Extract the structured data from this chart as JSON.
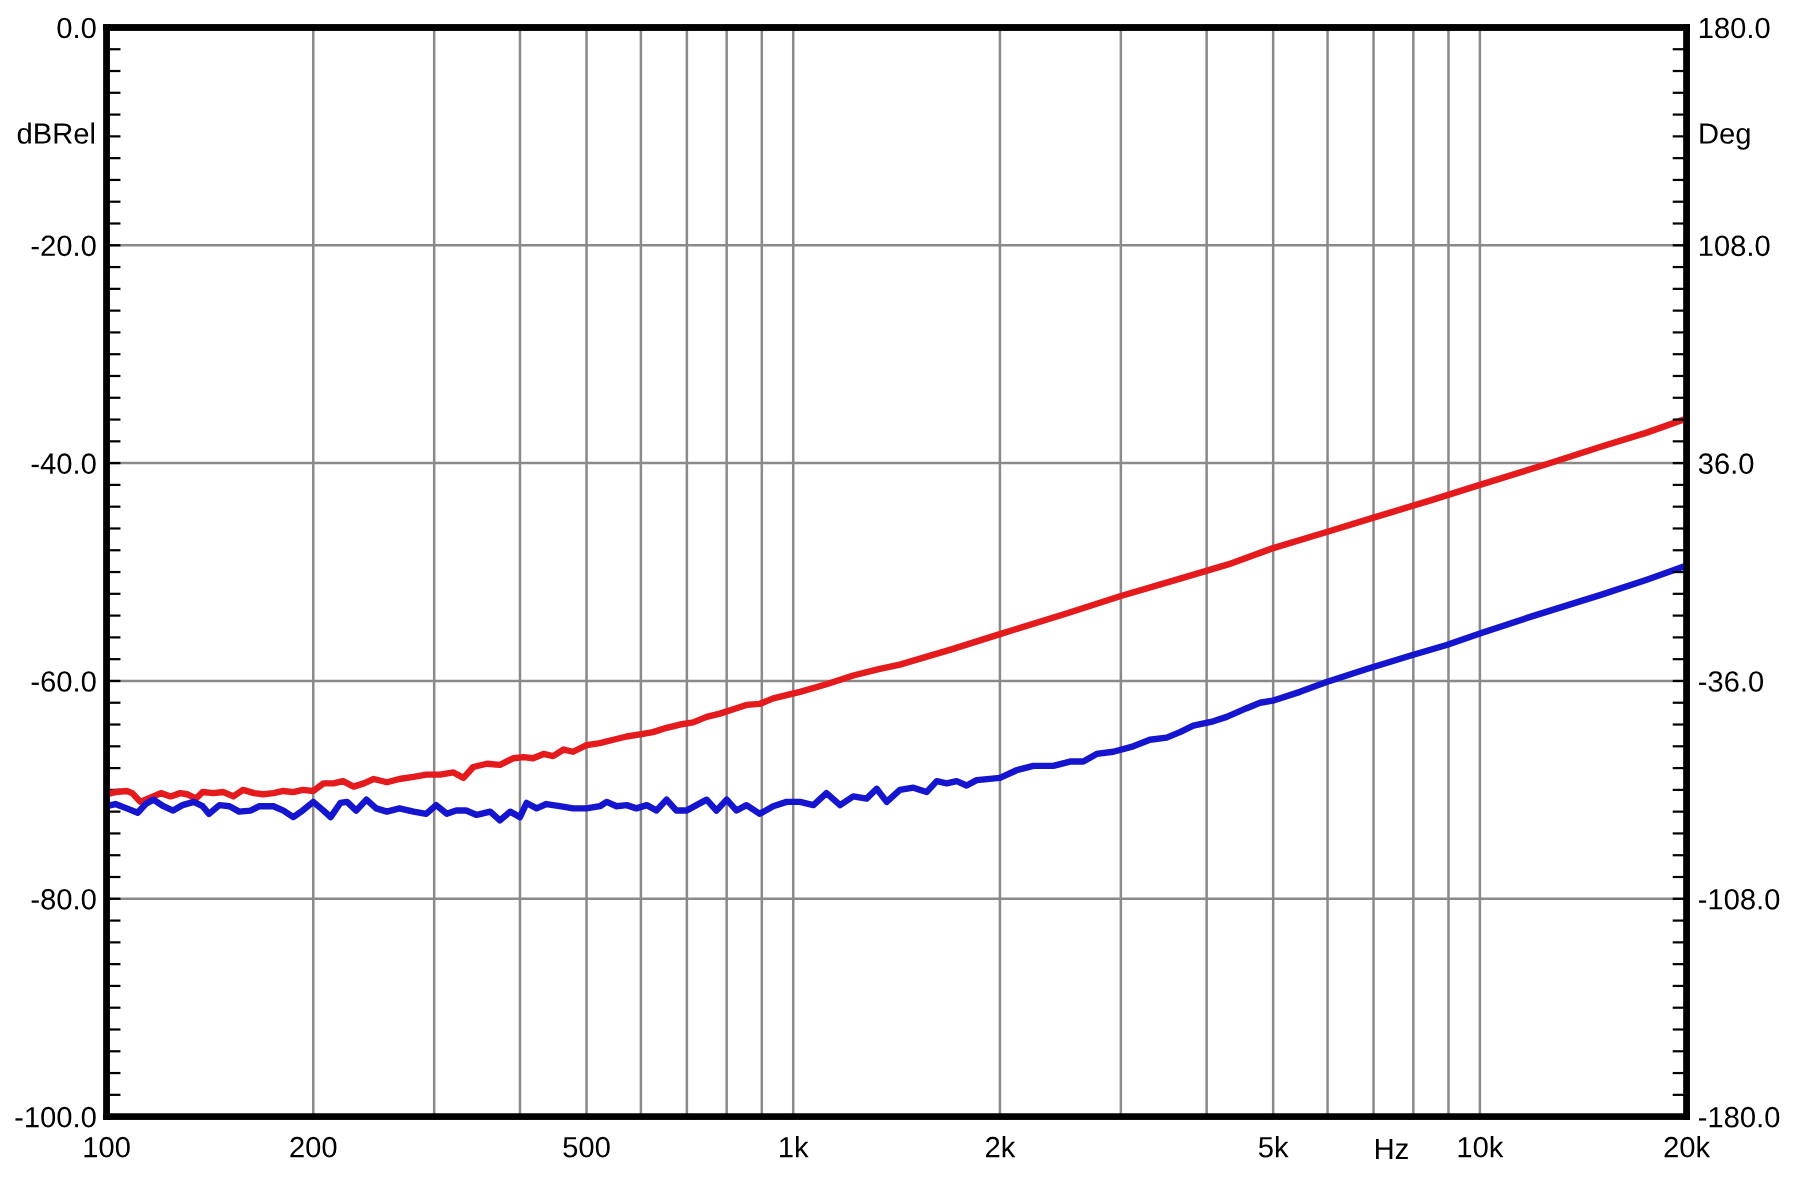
{
  "chart_data": {
    "type": "line",
    "xlabel": "Hz",
    "ylabel": "dBRel",
    "y2label": "Deg",
    "series": [
      {
        "color": "#e41a1c",
        "x": [
          100,
          103,
          107,
          109,
          112,
          116,
          120,
          124,
          128,
          131,
          135,
          138,
          143,
          148,
          153,
          158,
          164,
          169,
          175,
          181,
          187,
          193,
          200,
          207,
          214,
          221,
          229,
          237,
          245,
          256,
          267,
          280,
          292,
          306,
          320,
          331,
          342,
          358,
          374,
          391,
          405,
          418,
          433,
          447,
          463,
          478,
          500,
          523,
          547,
          572,
          598,
          625,
          654,
          684,
          715,
          748,
          782,
          818,
          855,
          894,
          935,
          978,
          1023,
          1118,
          1223,
          1337,
          1430,
          1700,
          2000,
          2500,
          3000,
          3660,
          4300,
          5000,
          6000,
          7000,
          8500,
          10000,
          12500,
          15000,
          17500,
          20000
        ],
        "values": [
          -70.4,
          -70.2,
          -70.1,
          -70.3,
          -71.1,
          -70.7,
          -70.3,
          -70.6,
          -70.3,
          -70.4,
          -70.8,
          -70.2,
          -70.3,
          -70.2,
          -70.6,
          -70.0,
          -70.3,
          -70.4,
          -70.3,
          -70.1,
          -70.2,
          -70.0,
          -70.1,
          -69.4,
          -69.4,
          -69.2,
          -69.7,
          -69.4,
          -69.0,
          -69.3,
          -69.0,
          -68.8,
          -68.6,
          -68.6,
          -68.4,
          -68.9,
          -67.9,
          -67.6,
          -67.7,
          -67.1,
          -67.0,
          -67.1,
          -66.7,
          -66.9,
          -66.3,
          -66.5,
          -65.9,
          -65.7,
          -65.4,
          -65.1,
          -64.9,
          -64.7,
          -64.3,
          -64.0,
          -63.8,
          -63.3,
          -63.0,
          -62.6,
          -62.2,
          -62.1,
          -61.6,
          -61.3,
          -61.0,
          -60.3,
          -59.5,
          -58.9,
          -58.5,
          -57.1,
          -55.7,
          -53.8,
          -52.2,
          -50.6,
          -49.3,
          -47.8,
          -46.3,
          -45.0,
          -43.4,
          -42.0,
          -40.1,
          -38.5,
          -37.2,
          -35.9
        ]
      },
      {
        "color": "#1515d0",
        "x": [
          100,
          103,
          107,
          111,
          114,
          117,
          121,
          125,
          129,
          134,
          138,
          141,
          146,
          151,
          156,
          162,
          167,
          175,
          181,
          187,
          193,
          200,
          207,
          212,
          219,
          224,
          231,
          239,
          247,
          256,
          267,
          280,
          292,
          302,
          313,
          323,
          334,
          346,
          362,
          374,
          387,
          400,
          409,
          423,
          437,
          457,
          478,
          500,
          523,
          535,
          553,
          572,
          591,
          612,
          632,
          654,
          676,
          699,
          723,
          748,
          773,
          800,
          827,
          855,
          894,
          935,
          978,
          1023,
          1070,
          1118,
          1170,
          1223,
          1279,
          1323,
          1368,
          1430,
          1496,
          1564,
          1618,
          1673,
          1730,
          1789,
          1850,
          2000,
          2115,
          2237,
          2392,
          2530,
          2645,
          2766,
          2925,
          3128,
          3307,
          3498,
          3658,
          3825,
          4091,
          4278,
          4575,
          4784,
          5003,
          5470,
          5982,
          6842,
          8000,
          8945,
          10050,
          12000,
          15000,
          17500,
          20000
        ],
        "values": [
          -71.5,
          -71.3,
          -71.7,
          -72.1,
          -71.3,
          -70.9,
          -71.5,
          -71.9,
          -71.4,
          -71.1,
          -71.5,
          -72.2,
          -71.4,
          -71.5,
          -72.0,
          -71.9,
          -71.5,
          -71.5,
          -71.9,
          -72.5,
          -71.9,
          -71.1,
          -71.9,
          -72.5,
          -71.2,
          -71.1,
          -71.9,
          -70.9,
          -71.7,
          -72.0,
          -71.7,
          -72.0,
          -72.2,
          -71.4,
          -72.2,
          -71.9,
          -71.9,
          -72.3,
          -72.0,
          -72.8,
          -72.0,
          -72.5,
          -71.2,
          -71.7,
          -71.3,
          -71.5,
          -71.7,
          -71.7,
          -71.5,
          -71.1,
          -71.5,
          -71.4,
          -71.7,
          -71.4,
          -71.9,
          -70.9,
          -71.9,
          -71.9,
          -71.4,
          -70.9,
          -71.9,
          -70.9,
          -71.9,
          -71.4,
          -72.2,
          -71.5,
          -71.1,
          -71.1,
          -71.4,
          -70.3,
          -71.4,
          -70.6,
          -70.8,
          -69.9,
          -71.1,
          -70.0,
          -69.8,
          -70.2,
          -69.2,
          -69.4,
          -69.2,
          -69.6,
          -69.1,
          -68.9,
          -68.2,
          -67.8,
          -67.8,
          -67.4,
          -67.4,
          -66.7,
          -66.5,
          -66.0,
          -65.4,
          -65.2,
          -64.7,
          -64.1,
          -63.7,
          -63.3,
          -62.5,
          -62.0,
          -61.8,
          -61.0,
          -60.1,
          -58.9,
          -57.6,
          -56.7,
          -55.6,
          -54.0,
          -52.1,
          -50.7,
          -49.4
        ]
      }
    ],
    "log": "x",
    "xlim": [
      100,
      20000
    ],
    "xticks": [
      100,
      200,
      {
        "value": 300,
        "label": null
      },
      {
        "value": 400,
        "label": null
      },
      500,
      {
        "value": 600,
        "label": null
      },
      {
        "value": 700,
        "label": null
      },
      {
        "value": 800,
        "label": null
      },
      {
        "value": 900,
        "label": null
      },
      {
        "value": 1000,
        "label": "1k"
      },
      {
        "value": 2000,
        "label": "2k"
      },
      {
        "value": 3000,
        "label": null
      },
      {
        "value": 4000,
        "label": null
      },
      {
        "value": 5000,
        "label": "5k"
      },
      {
        "value": 6000,
        "label": null
      },
      {
        "value": 7000,
        "label": null
      },
      {
        "value": 8000,
        "label": null
      },
      {
        "value": 9000,
        "label": null
      },
      {
        "value": 10000,
        "label": "10k"
      },
      {
        "value": 20000,
        "label": "20k"
      }
    ],
    "ylim": [
      -100,
      0
    ],
    "yticks": [
      {
        "value": 0,
        "label": "0.0"
      },
      {
        "value": -20,
        "label": "-20.0"
      },
      {
        "value": -40,
        "label": "-40.0"
      },
      {
        "value": -60,
        "label": "-60.0"
      },
      {
        "value": -80,
        "label": "-80.0"
      },
      {
        "value": -100,
        "label": "-100.0"
      }
    ],
    "y2lim": [
      -180,
      180
    ],
    "y2ticks": [
      {
        "value": 180,
        "label": "180.0"
      },
      {
        "value": 108,
        "label": "108.0"
      },
      {
        "value": 36,
        "label": "36.0"
      },
      {
        "value": -36,
        "label": "-36.0"
      },
      {
        "value": -108,
        "label": "-108.0"
      },
      {
        "value": -180,
        "label": "-180.0"
      }
    ],
    "grid": true,
    "line_style": "solid"
  }
}
